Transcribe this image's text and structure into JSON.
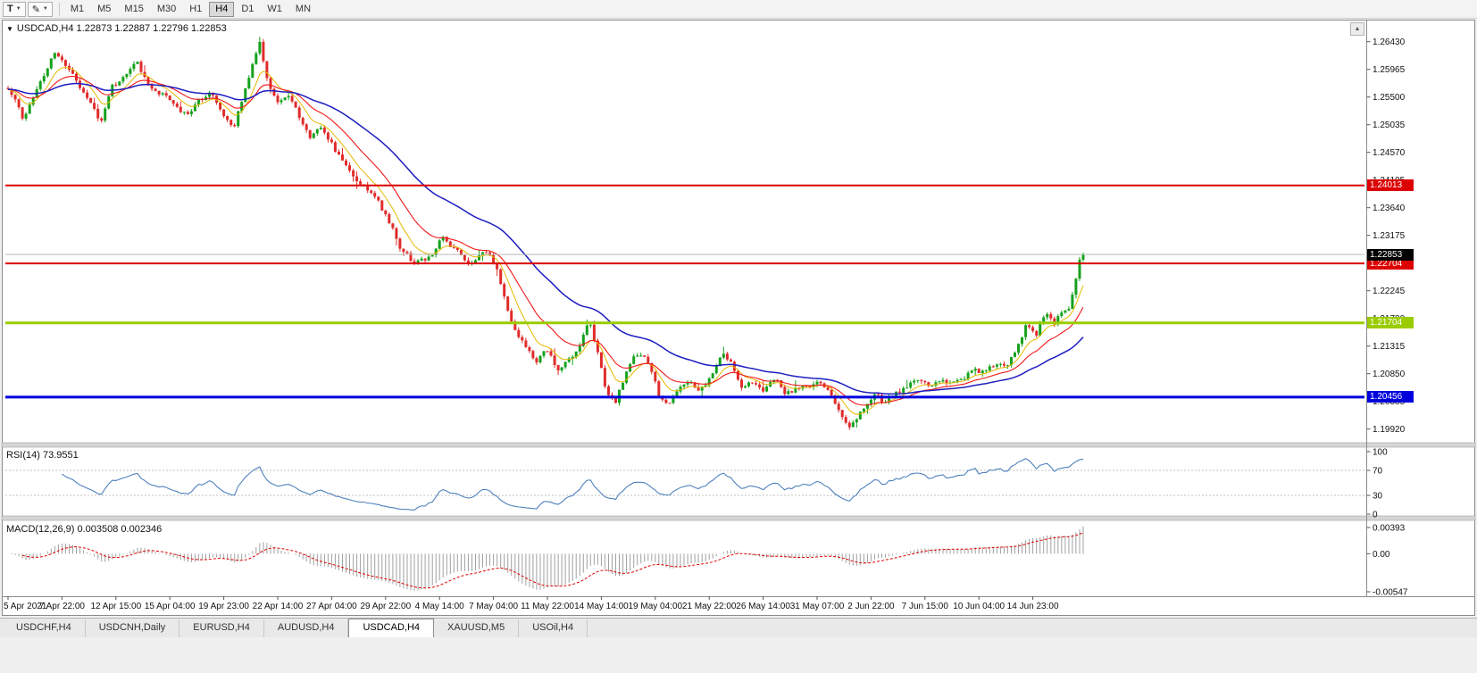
{
  "icons": {
    "caret": "▼",
    "pen": "✎",
    "scroll_up": "▲"
  },
  "toolbar": {
    "template_button": {
      "label": "T"
    },
    "timeframes": [
      "M1",
      "M5",
      "M15",
      "M30",
      "H1",
      "H4",
      "D1",
      "W1",
      "MN"
    ],
    "active_timeframe": "H4"
  },
  "main_chart": {
    "title": "USDCAD,H4 1.22873 1.22887 1.22796 1.22853",
    "price_axis_ticks": [
      "1.26430",
      "1.25965",
      "1.25500",
      "1.25035",
      "1.24570",
      "1.24105",
      "1.23640",
      "1.23175",
      "1.22710",
      "1.22245",
      "1.21780",
      "1.21315",
      "1.20850",
      "1.20385",
      "1.19920"
    ],
    "hlines": [
      {
        "price": 1.24013,
        "label": "1.24013",
        "color": "#dd0000",
        "width": 2
      },
      {
        "price": 1.22704,
        "label": "1.22704",
        "color": "#dd0000",
        "width": 2
      },
      {
        "price": 1.21704,
        "label": "1.21704",
        "color": "#9acc00",
        "width": 3
      },
      {
        "price": 1.20456,
        "label": "1.20456",
        "color": "#0000dd",
        "width": 3
      }
    ],
    "current_price": {
      "value": 1.22853,
      "label": "1.22853",
      "box_color": "#000000"
    },
    "colors": {
      "up": "#14a11c",
      "down": "#e02b2b",
      "ma_fast": "#e5b800",
      "ma_mid": "#f01818",
      "ma_slow": "#1d1dc0"
    },
    "time_axis": [
      "5 Apr 2021",
      "7 Apr 22:00",
      "12 Apr 15:00",
      "15 Apr 04:00",
      "19 Apr 23:00",
      "22 Apr 14:00",
      "27 Apr 04:00",
      "29 Apr 22:00",
      "4 May 14:00",
      "7 May 04:00",
      "11 May 22:00",
      "14 May 14:00",
      "19 May 04:00",
      "21 May 22:00",
      "26 May 14:00",
      "31 May 07:00",
      "2 Jun 22:00",
      "7 Jun 15:00",
      "10 Jun 04:00",
      "14 Jun 23:00"
    ]
  },
  "chart_data": {
    "type": "candlestick",
    "symbol": "USDCAD",
    "timeframe": "H4",
    "ohlc_display": {
      "open": "1.22873",
      "high": "1.22887",
      "low": "1.22796",
      "close": "1.22853"
    },
    "ylim": [
      1.1972,
      1.2674
    ],
    "num_candles": 300,
    "price_path": [
      [
        0.0,
        1.2565
      ],
      [
        0.008,
        1.254
      ],
      [
        0.014,
        1.2505
      ],
      [
        0.022,
        1.2545
      ],
      [
        0.033,
        1.259
      ],
      [
        0.045,
        1.2625
      ],
      [
        0.053,
        1.261
      ],
      [
        0.064,
        1.2575
      ],
      [
        0.076,
        1.2545
      ],
      [
        0.086,
        1.251
      ],
      [
        0.097,
        1.2565
      ],
      [
        0.109,
        1.259
      ],
      [
        0.119,
        1.2618
      ],
      [
        0.13,
        1.257
      ],
      [
        0.142,
        1.256
      ],
      [
        0.155,
        1.254
      ],
      [
        0.167,
        1.2515
      ],
      [
        0.177,
        1.255
      ],
      [
        0.19,
        1.2555
      ],
      [
        0.202,
        1.251
      ],
      [
        0.21,
        1.249
      ],
      [
        0.219,
        1.2555
      ],
      [
        0.227,
        1.26
      ],
      [
        0.234,
        1.2648
      ],
      [
        0.24,
        1.258
      ],
      [
        0.25,
        1.2545
      ],
      [
        0.26,
        1.256
      ],
      [
        0.271,
        1.252
      ],
      [
        0.282,
        1.2485
      ],
      [
        0.292,
        1.2505
      ],
      [
        0.302,
        1.247
      ],
      [
        0.312,
        1.244
      ],
      [
        0.323,
        1.241
      ],
      [
        0.333,
        1.24
      ],
      [
        0.343,
        1.2382
      ],
      [
        0.354,
        1.234
      ],
      [
        0.364,
        1.23
      ],
      [
        0.373,
        1.2278
      ],
      [
        0.383,
        1.2272
      ],
      [
        0.393,
        1.2285
      ],
      [
        0.403,
        1.231
      ],
      [
        0.414,
        1.2295
      ],
      [
        0.424,
        1.228
      ],
      [
        0.434,
        1.227
      ],
      [
        0.445,
        1.2288
      ],
      [
        0.453,
        1.227
      ],
      [
        0.461,
        1.222
      ],
      [
        0.47,
        1.216
      ],
      [
        0.48,
        1.213
      ],
      [
        0.49,
        1.2105
      ],
      [
        0.5,
        1.2125
      ],
      [
        0.511,
        1.2095
      ],
      [
        0.522,
        1.211
      ],
      [
        0.532,
        1.2135
      ],
      [
        0.54,
        1.2175
      ],
      [
        0.548,
        1.212
      ],
      [
        0.557,
        1.205
      ],
      [
        0.565,
        1.2035
      ],
      [
        0.575,
        1.209
      ],
      [
        0.586,
        1.212
      ],
      [
        0.596,
        1.21
      ],
      [
        0.605,
        1.205
      ],
      [
        0.613,
        1.203
      ],
      [
        0.623,
        1.2055
      ],
      [
        0.633,
        1.2065
      ],
      [
        0.644,
        1.2055
      ],
      [
        0.654,
        1.208
      ],
      [
        0.664,
        1.2125
      ],
      [
        0.673,
        1.21
      ],
      [
        0.683,
        1.2065
      ],
      [
        0.693,
        1.2075
      ],
      [
        0.704,
        1.206
      ],
      [
        0.714,
        1.207
      ],
      [
        0.724,
        1.205
      ],
      [
        0.735,
        1.2065
      ],
      [
        0.746,
        1.206
      ],
      [
        0.755,
        1.2065
      ],
      [
        0.765,
        1.2045
      ],
      [
        0.776,
        1.201
      ],
      [
        0.785,
        1.1998
      ],
      [
        0.793,
        1.2025
      ],
      [
        0.804,
        1.205
      ],
      [
        0.814,
        1.2038
      ],
      [
        0.824,
        1.2055
      ],
      [
        0.834,
        1.206
      ],
      [
        0.845,
        1.207
      ],
      [
        0.855,
        1.2065
      ],
      [
        0.865,
        1.2075
      ],
      [
        0.876,
        1.207
      ],
      [
        0.886,
        1.208
      ],
      [
        0.896,
        1.209
      ],
      [
        0.906,
        1.2085
      ],
      [
        0.917,
        1.21
      ],
      [
        0.928,
        1.2095
      ],
      [
        0.938,
        1.213
      ],
      [
        0.948,
        1.217
      ],
      [
        0.956,
        1.215
      ],
      [
        0.964,
        1.2185
      ],
      [
        0.973,
        1.217
      ],
      [
        0.981,
        1.219
      ],
      [
        0.987,
        1.22
      ],
      [
        0.992,
        1.223
      ],
      [
        0.996,
        1.2275
      ],
      [
        1.0,
        1.2285
      ]
    ]
  },
  "rsi": {
    "title": "RSI(14) 73.9551",
    "period": 14,
    "last_value": 73.9551,
    "axis_ticks": [
      "100",
      "70",
      "30",
      "0"
    ],
    "levels": [
      70,
      30
    ],
    "line_color": "#4f81bd"
  },
  "macd": {
    "title": "MACD(12,26,9) 0.003508 0.002346",
    "params": [
      12,
      26,
      9
    ],
    "values": [
      "0.003508",
      "0.002346"
    ],
    "axis_ticks": [
      "0.00393",
      "0.00",
      "-0.00547"
    ],
    "hist_color": "#a0a0a0",
    "signal_color": "#e00000"
  },
  "tabs": [
    "USDCHF,H4",
    "USDCNH,Daily",
    "EURUSD,H4",
    "AUDUSD,H4",
    "USDCAD,H4",
    "XAUUSD,M5",
    "USOil,H4"
  ],
  "active_tab": "USDCAD,H4"
}
